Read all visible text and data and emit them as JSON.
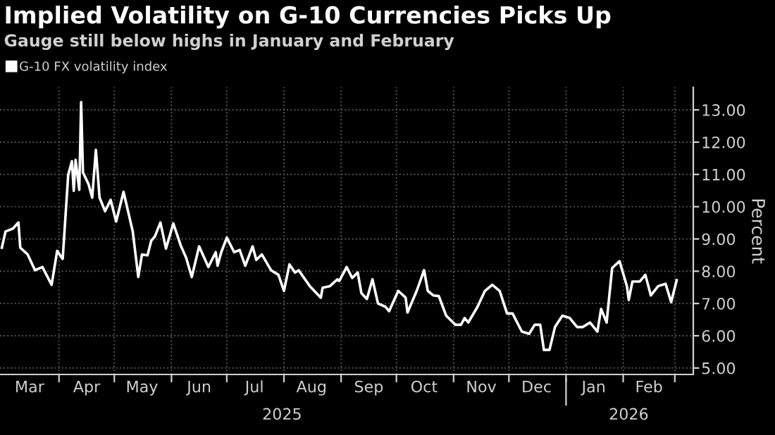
{
  "chart_data": {
    "type": "line",
    "title": "Implied Volatility on G-10 Currencies Picks Up",
    "subtitle": "Gauge still below highs in January and February",
    "ylabel": "Percent",
    "x": [
      "2025-03-01",
      "2025-03-03",
      "2025-03-07",
      "2025-03-10",
      "2025-03-11",
      "2025-03-15",
      "2025-03-19",
      "2025-03-23",
      "2025-03-28",
      "2025-03-31",
      "2025-04-03",
      "2025-04-06",
      "2025-04-08",
      "2025-04-09",
      "2025-04-10",
      "2025-04-12",
      "2025-04-13",
      "2025-04-14",
      "2025-04-17",
      "2025-04-19",
      "2025-04-21",
      "2025-04-23",
      "2025-04-26",
      "2025-04-29",
      "2025-05-02",
      "2025-05-06",
      "2025-05-11",
      "2025-05-14",
      "2025-05-16",
      "2025-05-19",
      "2025-05-21",
      "2025-05-23",
      "2025-05-26",
      "2025-05-29",
      "2025-06-02",
      "2025-06-06",
      "2025-06-09",
      "2025-06-12",
      "2025-06-16",
      "2025-06-21",
      "2025-06-25",
      "2025-06-26",
      "2025-06-28",
      "2025-07-01",
      "2025-07-05",
      "2025-07-08",
      "2025-07-11",
      "2025-07-15",
      "2025-07-17",
      "2025-07-20",
      "2025-07-25",
      "2025-07-29",
      "2025-08-01",
      "2025-08-04",
      "2025-08-07",
      "2025-08-09",
      "2025-08-15",
      "2025-08-21",
      "2025-08-22",
      "2025-08-26",
      "2025-08-30",
      "2025-08-31",
      "2025-09-04",
      "2025-09-07",
      "2025-09-10",
      "2025-09-12",
      "2025-09-15",
      "2025-09-18",
      "2025-09-21",
      "2025-09-25",
      "2025-09-27",
      "2025-10-02",
      "2025-10-06",
      "2025-10-07",
      "2025-10-12",
      "2025-10-16",
      "2025-10-18",
      "2025-10-21",
      "2025-10-24",
      "2025-10-28",
      "2025-11-02",
      "2025-11-05",
      "2025-11-07",
      "2025-11-09",
      "2025-11-14",
      "2025-11-18",
      "2025-11-22",
      "2025-11-26",
      "2025-11-30",
      "2025-12-03",
      "2025-12-08",
      "2025-12-12",
      "2025-12-15",
      "2025-12-18",
      "2025-12-20",
      "2025-12-23",
      "2025-12-26",
      "2025-12-30",
      "2026-01-03",
      "2026-01-07",
      "2026-01-10",
      "2026-01-14",
      "2026-01-18",
      "2026-01-20",
      "2026-01-23",
      "2026-01-26",
      "2026-01-30",
      "2026-02-03",
      "2026-02-04",
      "2026-02-06",
      "2026-02-10",
      "2026-02-13",
      "2026-02-16",
      "2026-02-20",
      "2026-02-24",
      "2026-02-27",
      "2026-03-02"
    ],
    "series": [
      {
        "name": "G-10 FX volatility index",
        "color": "#ffffff",
        "values": [
          8.73,
          9.23,
          9.32,
          9.51,
          8.73,
          8.52,
          8.03,
          8.13,
          7.58,
          8.63,
          8.38,
          10.99,
          11.41,
          10.49,
          11.45,
          10.52,
          13.24,
          11.06,
          10.7,
          10.28,
          11.76,
          10.28,
          9.86,
          10.21,
          9.54,
          10.46,
          9.23,
          7.82,
          8.52,
          8.49,
          8.94,
          9.08,
          9.51,
          8.7,
          9.48,
          8.8,
          8.41,
          7.82,
          8.77,
          8.13,
          8.59,
          8.17,
          8.59,
          9.04,
          8.59,
          8.66,
          8.17,
          8.77,
          8.35,
          8.52,
          8.03,
          7.89,
          7.39,
          8.21,
          7.96,
          8.03,
          7.54,
          7.18,
          7.49,
          7.54,
          7.75,
          7.7,
          8.13,
          7.79,
          7.96,
          7.32,
          7.14,
          7.75,
          7.0,
          6.9,
          6.76,
          7.39,
          7.18,
          6.72,
          7.39,
          8.03,
          7.39,
          7.25,
          7.23,
          6.62,
          6.34,
          6.34,
          6.55,
          6.41,
          6.9,
          7.39,
          7.58,
          7.39,
          6.69,
          6.69,
          6.13,
          6.06,
          6.34,
          6.34,
          5.56,
          5.56,
          6.27,
          6.62,
          6.55,
          6.27,
          6.27,
          6.41,
          6.13,
          6.83,
          6.41,
          8.1,
          8.31,
          7.54,
          7.11,
          7.68,
          7.68,
          7.89,
          7.25,
          7.54,
          7.61,
          7.04,
          7.72
        ]
      }
    ],
    "xlim": [
      "2025-02-28",
      "2026-03-11"
    ],
    "xticks": [
      {
        "value": "2025-03-16",
        "label": "Mar"
      },
      {
        "value": "2025-04-01",
        "label": null
      },
      {
        "value": "2025-04-16",
        "label": "Apr"
      },
      {
        "value": "2025-05-01",
        "label": null
      },
      {
        "value": "2025-05-16",
        "label": "May"
      },
      {
        "value": "2025-06-01",
        "label": null
      },
      {
        "value": "2025-06-16",
        "label": "Jun"
      },
      {
        "value": "2025-07-01",
        "label": null
      },
      {
        "value": "2025-07-16",
        "label": "Jul"
      },
      {
        "value": "2025-08-01",
        "label": null
      },
      {
        "value": "2025-08-16",
        "label": "Aug"
      },
      {
        "value": "2025-09-01",
        "label": null
      },
      {
        "value": "2025-09-16",
        "label": "Sep"
      },
      {
        "value": "2025-10-01",
        "label": null
      },
      {
        "value": "2025-10-16",
        "label": "Oct"
      },
      {
        "value": "2025-11-01",
        "label": null
      },
      {
        "value": "2025-11-16",
        "label": "Nov"
      },
      {
        "value": "2025-12-01",
        "label": null
      },
      {
        "value": "2025-12-16",
        "label": "Dec"
      },
      {
        "value": "2026-01-01",
        "label": null
      },
      {
        "value": "2026-01-16",
        "label": "Jan"
      },
      {
        "value": "2026-02-01",
        "label": null
      },
      {
        "value": "2026-02-15",
        "label": "Feb"
      },
      {
        "value": "2026-03-01",
        "label": null
      }
    ],
    "ylim": [
      4.8,
      13.7
    ],
    "yticks": [
      {
        "value": 5,
        "label": "5.00"
      },
      {
        "value": 6,
        "label": "6.00"
      },
      {
        "value": 7,
        "label": "7.00"
      },
      {
        "value": 8,
        "label": "8.00"
      },
      {
        "value": 9,
        "label": "9.00"
      },
      {
        "value": 10,
        "label": "10.00"
      },
      {
        "value": 11,
        "label": "11.00"
      },
      {
        "value": 12,
        "label": "12.00"
      },
      {
        "value": 13,
        "label": "13.00"
      }
    ],
    "annotations": [
      "2025",
      "2026"
    ],
    "grid": true,
    "legend": "top left",
    "marker": "none",
    "line_style": "solid"
  }
}
